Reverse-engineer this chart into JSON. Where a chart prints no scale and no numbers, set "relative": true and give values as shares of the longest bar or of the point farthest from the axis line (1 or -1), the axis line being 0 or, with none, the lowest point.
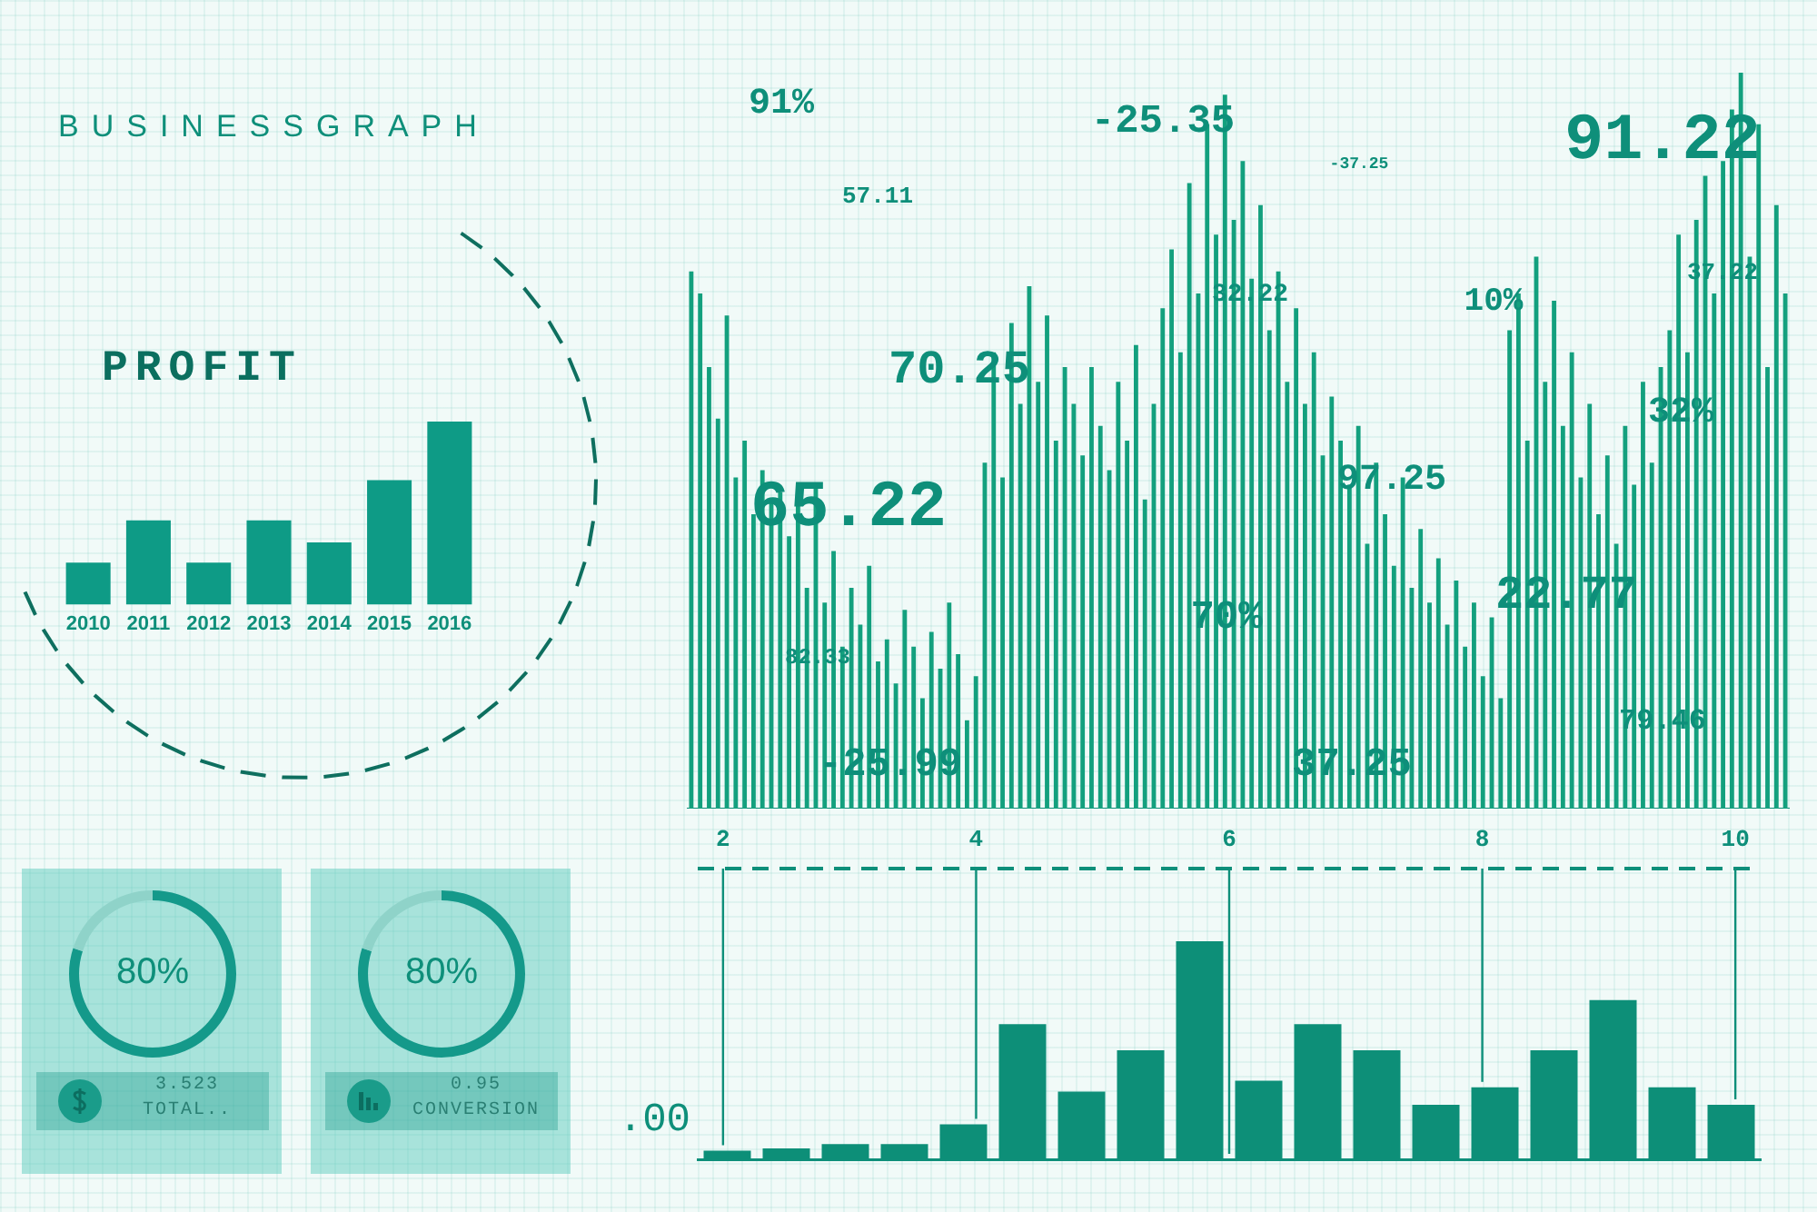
{
  "chart_data": [
    {
      "type": "bar",
      "title": "BUSINESSGRAPH",
      "subtitle": "PROFIT",
      "categories": [
        "2010",
        "2011",
        "2012",
        "2013",
        "2014",
        "2015",
        "2016"
      ],
      "values": [
        0.23,
        0.46,
        0.23,
        0.46,
        0.34,
        0.68,
        1
      ],
      "color": "#0e9b86",
      "relative": true,
      "tick_labels": "x"
    },
    {
      "type": "bar",
      "categories": [
        null,
        null,
        null,
        null,
        null,
        null,
        null,
        null,
        null,
        null,
        null,
        null,
        null,
        null,
        null,
        null,
        null,
        null,
        null,
        null,
        null,
        null,
        null,
        null,
        null,
        null,
        null,
        null,
        null,
        null,
        null,
        null,
        null,
        null,
        null,
        null,
        null,
        null,
        null,
        null,
        null,
        null,
        null,
        null,
        null,
        null,
        null,
        null,
        null,
        null,
        null,
        null,
        null,
        null,
        null,
        null,
        null,
        null,
        null,
        null,
        null,
        null,
        null,
        null,
        null,
        null,
        null,
        null,
        null,
        null,
        null,
        null,
        null,
        null,
        null,
        null,
        null,
        null,
        null,
        null,
        null,
        null,
        null,
        null,
        null,
        null,
        null,
        null,
        null,
        null,
        null,
        null,
        null,
        null,
        null,
        null,
        null,
        null,
        null,
        null,
        null,
        null,
        null,
        null,
        null,
        null,
        null,
        null,
        null,
        null,
        null,
        null,
        null,
        null,
        null,
        null,
        null,
        null,
        null,
        null,
        null,
        null,
        null,
        null
      ],
      "values": [
        0.73,
        0.7,
        0.6,
        0.53,
        0.67,
        0.45,
        0.5,
        0.4,
        0.46,
        0.42,
        0.43,
        0.37,
        0.42,
        0.3,
        0.44,
        0.28,
        0.35,
        0.22,
        0.3,
        0.25,
        0.33,
        0.2,
        0.23,
        0.17,
        0.27,
        0.22,
        0.15,
        0.24,
        0.19,
        0.28,
        0.21,
        0.12,
        0.18,
        0.47,
        0.62,
        0.45,
        0.66,
        0.55,
        0.71,
        0.58,
        0.67,
        0.5,
        0.6,
        0.55,
        0.48,
        0.6,
        0.52,
        0.46,
        0.58,
        0.5,
        0.63,
        0.42,
        0.55,
        0.68,
        0.76,
        0.62,
        0.85,
        0.7,
        0.93,
        0.78,
        0.97,
        0.8,
        0.88,
        0.72,
        0.82,
        0.65,
        0.73,
        0.58,
        0.68,
        0.55,
        0.62,
        0.48,
        0.56,
        0.5,
        0.44,
        0.52,
        0.36,
        0.47,
        0.4,
        0.33,
        0.45,
        0.3,
        0.38,
        0.28,
        0.34,
        0.25,
        0.31,
        0.22,
        0.28,
        0.18,
        0.26,
        0.15,
        0.65,
        0.7,
        0.5,
        0.75,
        0.58,
        0.69,
        0.52,
        0.62,
        0.45,
        0.55,
        0.4,
        0.48,
        0.36,
        0.52,
        0.44,
        0.58,
        0.47,
        0.6,
        0.65,
        0.78,
        0.62,
        0.8,
        0.86,
        0.7,
        0.88,
        0.95,
        1.0,
        0.75,
        0.93,
        0.6,
        0.82,
        0.7
      ],
      "color": "#13a07e",
      "relative": true,
      "tick_labels": false,
      "annotations": [
        "91%",
        "57.11",
        "-25.35",
        "-37.25",
        "91.22",
        "32.22",
        "37.22",
        "10%",
        "70.25",
        "65.22",
        "97.25",
        "32%",
        "70%",
        "22.77",
        "82.33",
        "79.46",
        "-25.99",
        "37.25"
      ]
    },
    {
      "type": "bar",
      "categories": [
        null,
        null,
        null,
        null,
        null,
        null,
        null,
        null,
        null,
        null,
        null,
        null,
        null,
        null,
        null,
        null,
        null,
        null
      ],
      "values": [
        0.04,
        0.05,
        0.07,
        0.07,
        0.16,
        0.62,
        0.31,
        0.5,
        1,
        0.36,
        0.62,
        0.5,
        0.25,
        0.33,
        0.5,
        0.73,
        0.33,
        0.25
      ],
      "color": "#0d8f78",
      "relative": true,
      "x2lim": [
        1.8,
        10.2
      ],
      "x2ticks": [
        2,
        4,
        6,
        8,
        10
      ],
      "grid": "x",
      "tick_labels": "x",
      "annotations": [
        ".00"
      ]
    },
    {
      "type": "donut",
      "categories": [
        null,
        null
      ],
      "values": [
        80,
        20
      ],
      "colors": [
        "#14998a",
        "#8fd3c9"
      ],
      "annotations": [
        "80%",
        "3.523",
        "TOTAL.."
      ]
    },
    {
      "type": "donut",
      "categories": [
        null,
        null
      ],
      "values": [
        80,
        20
      ],
      "colors": [
        "#14998a",
        "#8fd3c9"
      ],
      "annotations": [
        "80%",
        "0.95",
        "CONVERSION"
      ]
    }
  ]
}
